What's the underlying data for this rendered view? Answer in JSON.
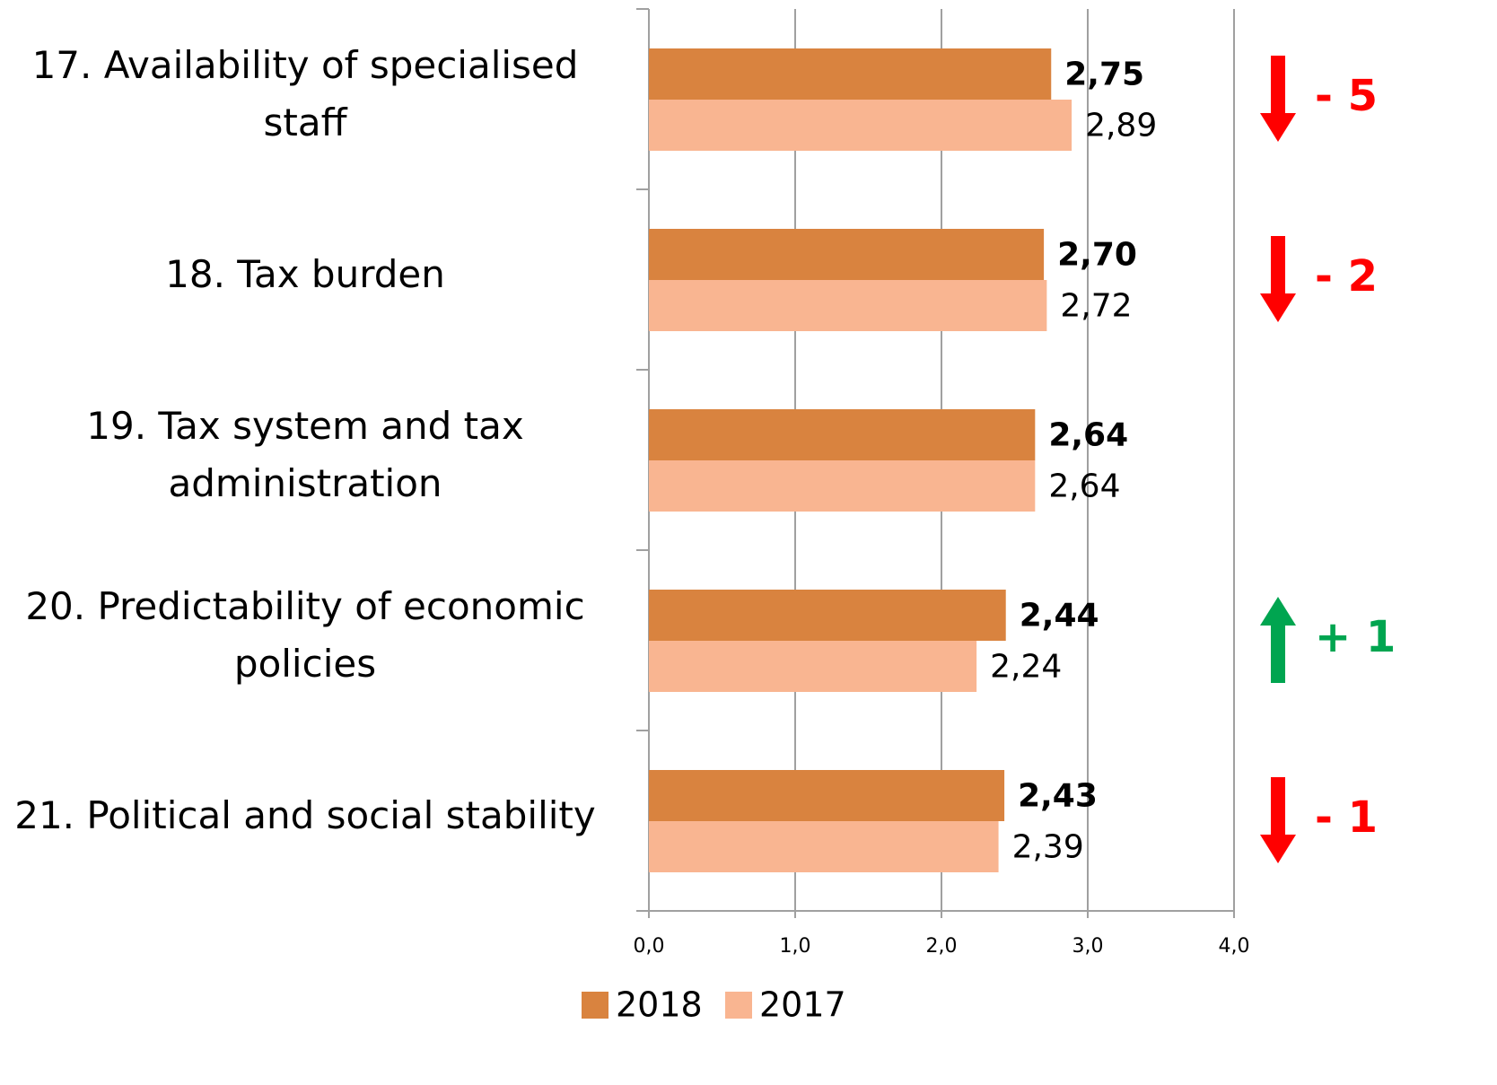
{
  "chart_data": {
    "type": "bar",
    "orientation": "horizontal",
    "categories": [
      "17. Availability of specialised staff",
      "18. Tax burden",
      "19. Tax system and tax administration",
      "20. Predictability of economic policies",
      "21. Political and social stability"
    ],
    "series": [
      {
        "name": "2018",
        "color": "#d9833f",
        "label_weight": "bold",
        "values": [
          2.75,
          2.7,
          2.64,
          2.44,
          2.43
        ],
        "value_labels": [
          "2,75",
          "2,70",
          "2,64",
          "2,44",
          "2,43"
        ]
      },
      {
        "name": "2017",
        "color": "#f9b591",
        "label_weight": "normal",
        "values": [
          2.89,
          2.72,
          2.64,
          2.24,
          2.39
        ],
        "value_labels": [
          "2,89",
          "2,72",
          "2,64",
          "2,24",
          "2,39"
        ]
      }
    ],
    "xlim": [
      0,
      4
    ],
    "xticks": [
      {
        "value": 0,
        "label": "0,0"
      },
      {
        "value": 1,
        "label": "1,0"
      },
      {
        "value": 2,
        "label": "2,0"
      },
      {
        "value": 3,
        "label": "3,0"
      },
      {
        "value": 4,
        "label": "4,0"
      }
    ],
    "grid": true,
    "legend": "bottom",
    "rank_changes": [
      {
        "label": "- 5",
        "direction": "down",
        "color": "#ff0000"
      },
      {
        "label": "- 2",
        "direction": "down",
        "color": "#ff0000"
      },
      null,
      {
        "label": "+ 1",
        "direction": "up",
        "color": "#00a550"
      },
      {
        "label": "- 1",
        "direction": "down",
        "color": "#ff0000"
      }
    ]
  }
}
